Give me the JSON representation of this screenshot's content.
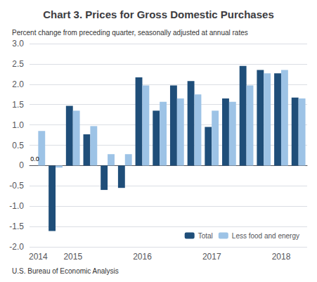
{
  "chart_data": {
    "type": "bar",
    "title": "Chart 3. Prices for Gross Domestic Purchases",
    "subtitle": "Percent change from preceding quarter, seasonally adjusted at annual rates",
    "source": "U.S. Bureau of Economic Analysis",
    "categories": [
      "2014",
      null,
      "2015",
      null,
      null,
      null,
      "2016",
      null,
      null,
      null,
      "2017",
      null,
      null,
      null,
      "2018",
      null
    ],
    "series": [
      {
        "name": "Total",
        "color": "#1F4E79",
        "values": [
          0.0,
          -1.61,
          1.47,
          0.77,
          -0.6,
          -0.55,
          2.17,
          1.35,
          1.97,
          2.08,
          0.95,
          1.65,
          2.45,
          2.35,
          2.27,
          1.67
        ],
        "value_labels": [
          "0.0",
          null,
          null,
          null,
          null,
          null,
          null,
          null,
          null,
          null,
          null,
          null,
          null,
          null,
          null,
          null
        ]
      },
      {
        "name": "Less food and energy",
        "color": "#9DC3E6",
        "values": [
          0.85,
          -0.05,
          1.35,
          0.97,
          0.28,
          0.28,
          1.97,
          1.57,
          1.65,
          1.75,
          1.35,
          1.57,
          1.97,
          2.27,
          2.35,
          1.65
        ]
      }
    ],
    "ylim": [
      -2.0,
      3.0
    ],
    "yticks": [
      {
        "value": -2.0,
        "label": "-2.0"
      },
      -1.5,
      {
        "value": -1.0,
        "label": "-1.0"
      },
      -0.5,
      0,
      0.5,
      {
        "value": 1.0,
        "label": "1.0"
      },
      1.5,
      {
        "value": 2.0,
        "label": "2.0"
      },
      2.5,
      {
        "value": 3.0,
        "label": "3.0"
      }
    ],
    "grid": true,
    "legend": "lower right"
  }
}
